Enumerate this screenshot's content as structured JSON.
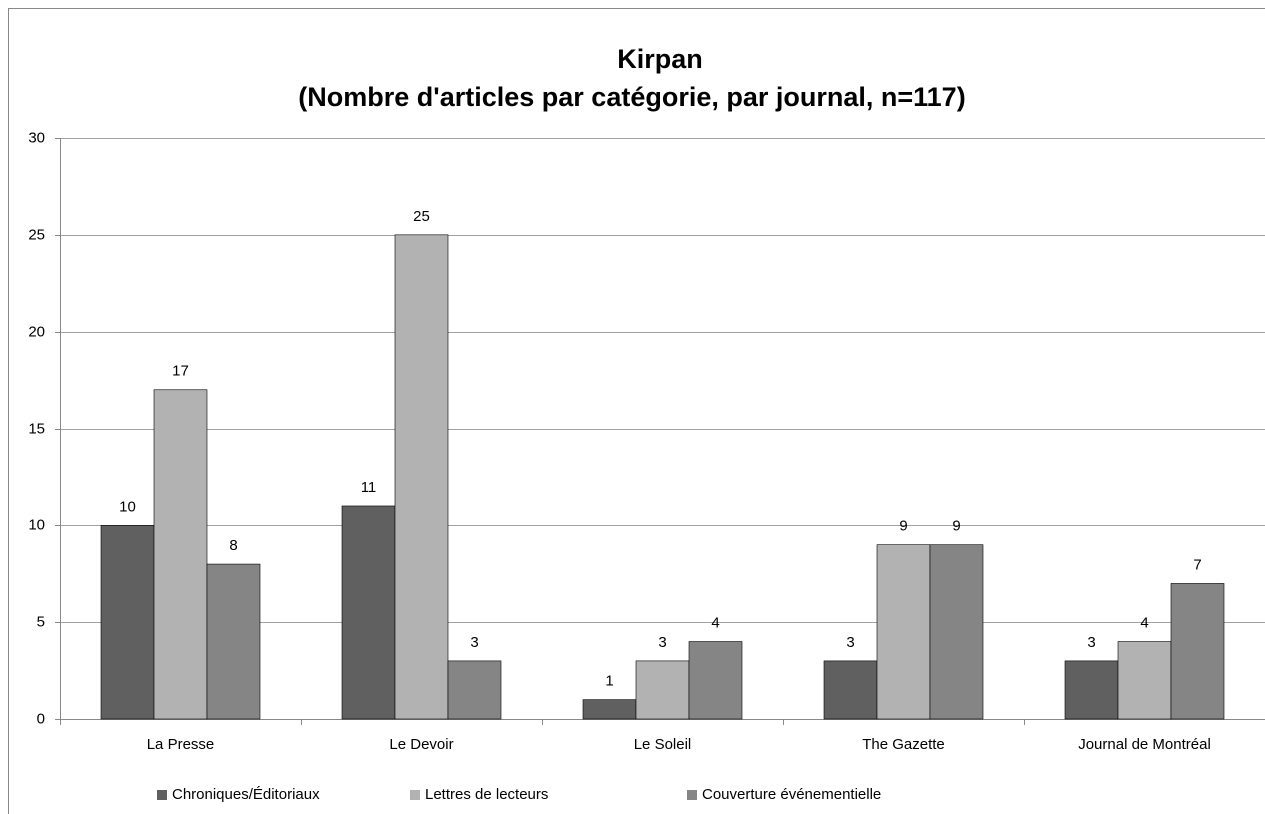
{
  "chart_data": {
    "type": "bar",
    "title": "Kirpan",
    "subtitle": "(Nombre d'articles par catégorie, par journal, n=117)",
    "categories": [
      "La Presse",
      "Le Devoir",
      "Le Soleil",
      "The Gazette",
      "Journal de Montréal"
    ],
    "series": [
      {
        "name": "Chroniques/Éditoriaux",
        "color": "#606060",
        "values": [
          10,
          11,
          1,
          3,
          3
        ]
      },
      {
        "name": "Lettres de lecteurs",
        "color": "#b2b2b2",
        "values": [
          17,
          25,
          3,
          9,
          4
        ]
      },
      {
        "name": "Couverture événementielle",
        "color": "#858585",
        "values": [
          8,
          3,
          4,
          9,
          7
        ]
      }
    ],
    "ylim": [
      0,
      30
    ],
    "yticks": [
      0,
      5,
      10,
      15,
      20,
      25,
      30
    ],
    "grid": true,
    "legend": "bottom"
  }
}
